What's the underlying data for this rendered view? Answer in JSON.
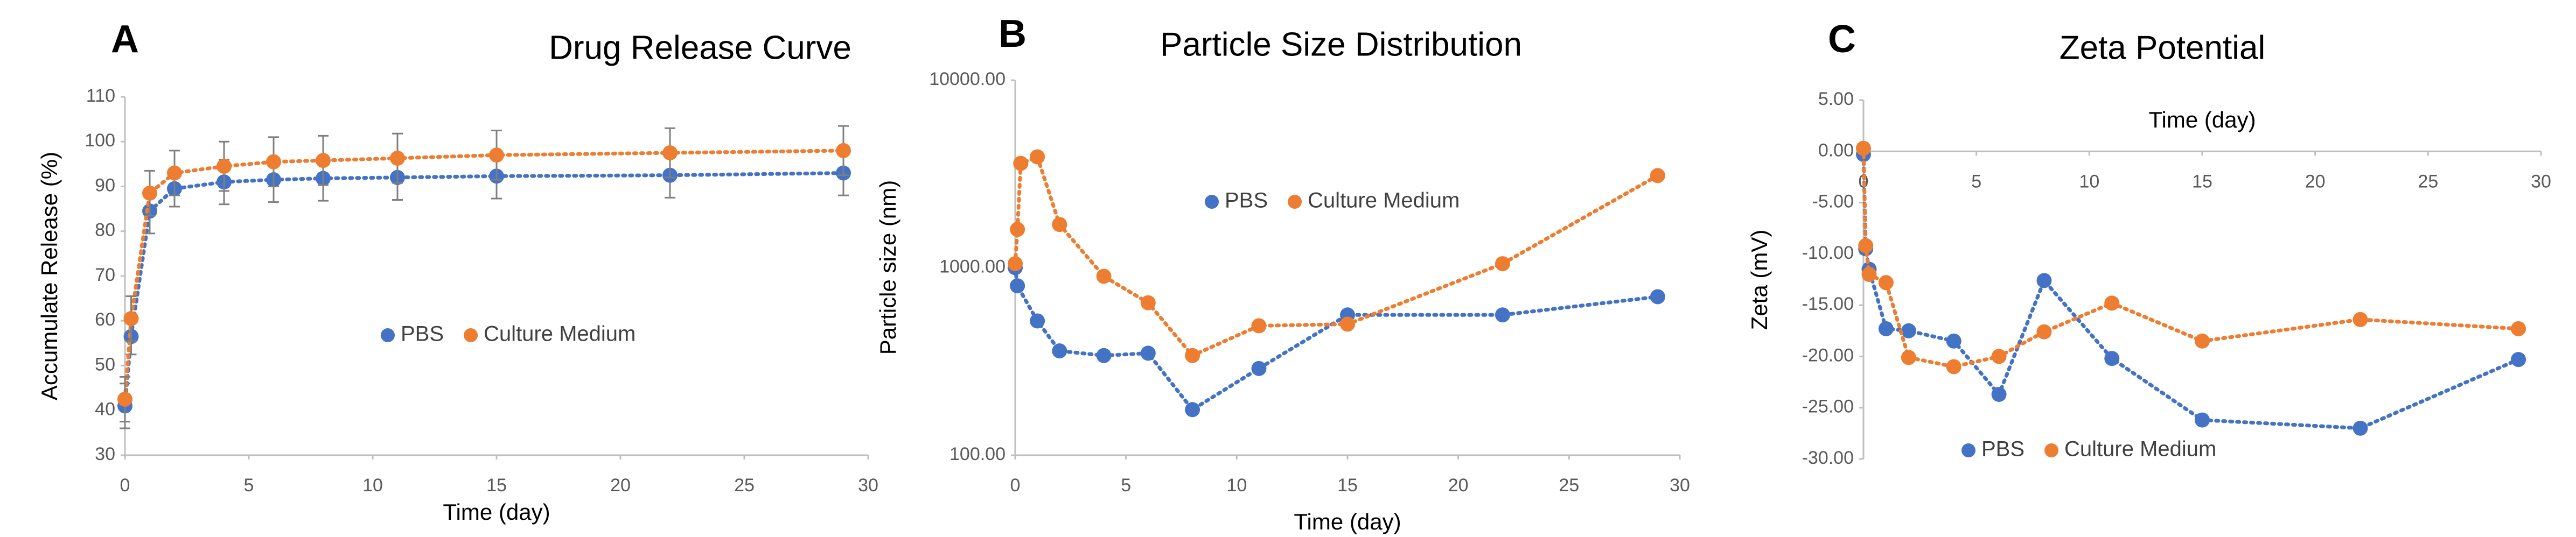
{
  "chart_data": [
    {
      "type": "scatter",
      "panel_label": "A",
      "title": "Drug Release Curve",
      "xlabel": "Time (day)",
      "ylabel": "Accumulate Release (%)",
      "xlim": [
        0,
        30
      ],
      "xticks": [
        0,
        5,
        10,
        15,
        20,
        25,
        30
      ],
      "ylim": [
        30,
        110
      ],
      "yticks": [
        30,
        40,
        50,
        60,
        70,
        80,
        90,
        100,
        110
      ],
      "line_style": "dotted",
      "series": [
        {
          "name": "PBS",
          "color": "#4472c4",
          "x": [
            0,
            0.25,
            1,
            2,
            4,
            6,
            8,
            11,
            15,
            22,
            29
          ],
          "values": [
            41,
            56.5,
            84.5,
            89.5,
            91,
            91.5,
            91.8,
            92,
            92.3,
            92.5,
            93
          ],
          "errors": [
            5,
            4,
            5,
            4,
            5,
            5,
            5,
            5,
            5,
            5,
            5
          ]
        },
        {
          "name": "Culture Medium",
          "color": "#ed7d31",
          "x": [
            0,
            0.25,
            1,
            2,
            4,
            6,
            8,
            11,
            15,
            22,
            29
          ],
          "values": [
            42.5,
            60.5,
            88.5,
            93,
            94.5,
            95.5,
            95.8,
            96.3,
            97,
            97.5,
            98
          ],
          "errors": [
            5,
            5,
            5,
            5,
            5.5,
            5.5,
            5.5,
            5.5,
            5.5,
            5.5,
            5.5
          ]
        }
      ]
    },
    {
      "type": "scatter",
      "panel_label": "B",
      "title": "Particle Size Distribution",
      "xlabel": "Time (day)",
      "ylabel": "Particle size (nm)",
      "xlim": [
        0,
        30
      ],
      "xticks": [
        0,
        5,
        10,
        15,
        20,
        25,
        30
      ],
      "log_y": true,
      "ylim": [
        100,
        10000
      ],
      "yticks": [
        {
          "value": 100,
          "label": "100.00"
        },
        {
          "value": 1000,
          "label": "1000.00"
        },
        {
          "value": 10000,
          "label": "10000.00"
        }
      ],
      "line_style": "dotted",
      "series": [
        {
          "name": "PBS",
          "color": "#4472c4",
          "x": [
            0,
            0.1,
            1,
            2,
            4,
            6,
            8,
            11,
            15,
            22,
            29
          ],
          "values": [
            1000,
            800,
            520,
            360,
            340,
            350,
            175,
            290,
            560,
            560,
            700
          ]
        },
        {
          "name": "Culture Medium",
          "color": "#ed7d31",
          "x": [
            0,
            0.1,
            0.25,
            1,
            2,
            4,
            6,
            8,
            11,
            15,
            22,
            29
          ],
          "values": [
            1050,
            1600,
            3600,
            3900,
            1700,
            900,
            650,
            340,
            490,
            500,
            1050,
            3100
          ]
        }
      ]
    },
    {
      "type": "scatter",
      "panel_label": "C",
      "title": "Zeta Potential",
      "xlabel": "Time (day)",
      "ylabel": "Zeta (mV)",
      "xlim": [
        0,
        30
      ],
      "xticks": [
        0,
        5,
        10,
        15,
        20,
        25,
        30
      ],
      "xaxis_crosses": 0,
      "ylim": [
        -30,
        5
      ],
      "yticks": [
        {
          "value": 5,
          "label": "5.00"
        },
        {
          "value": 0,
          "label": "0.00"
        },
        {
          "value": -5,
          "label": "-5.00"
        },
        {
          "value": -10,
          "label": "-10.00"
        },
        {
          "value": -15,
          "label": "-15.00"
        },
        {
          "value": -20,
          "label": "-20.00"
        },
        {
          "value": -25,
          "label": "-25.00"
        },
        {
          "value": -30,
          "label": "-30.00"
        }
      ],
      "line_style": "dotted",
      "series": [
        {
          "name": "PBS",
          "color": "#4472c4",
          "x": [
            0,
            0.1,
            0.25,
            1,
            2,
            4,
            6,
            8,
            11,
            15,
            22,
            29
          ],
          "values": [
            -0.3,
            -9.5,
            -11.5,
            -17.3,
            -17.5,
            -18.5,
            -23.7,
            -12.6,
            -20.2,
            -26.2,
            -27,
            -20.3
          ]
        },
        {
          "name": "Culture Medium",
          "color": "#ed7d31",
          "x": [
            0,
            0.1,
            0.25,
            1,
            2,
            4,
            6,
            8,
            11,
            15,
            22,
            29
          ],
          "values": [
            0.3,
            -9.2,
            -12,
            -12.8,
            -20.1,
            -21,
            -20,
            -17.6,
            -14.8,
            -18.5,
            -16.4,
            -17.3
          ]
        }
      ]
    }
  ]
}
